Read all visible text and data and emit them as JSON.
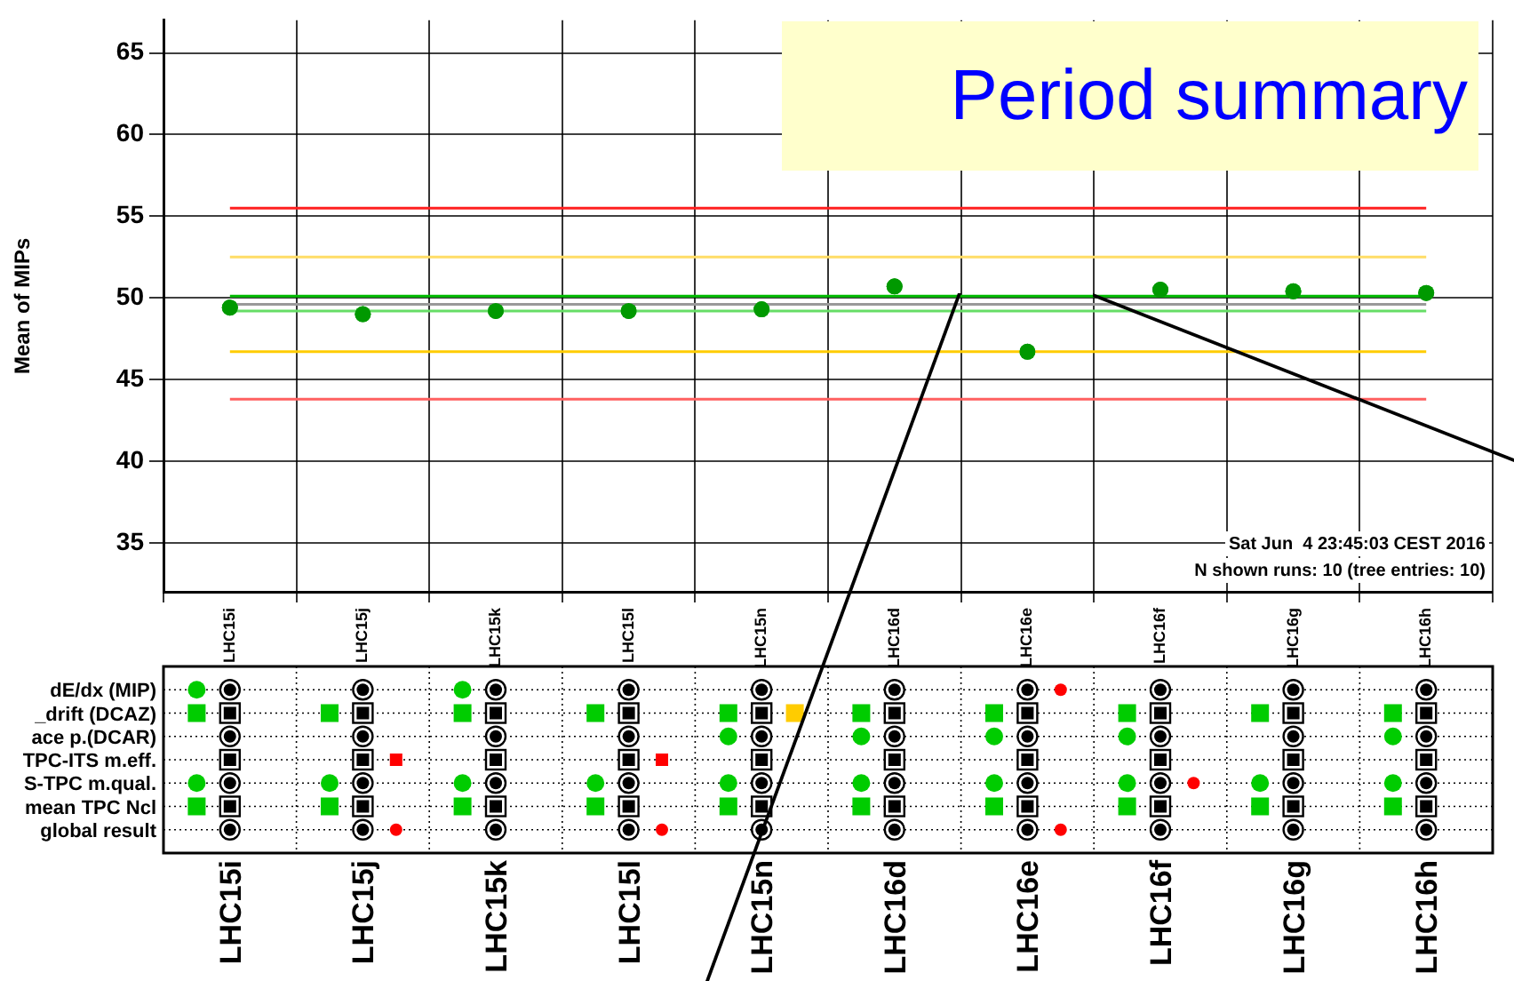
{
  "chart_data": [
    {
      "type": "scatter",
      "title": "Period summary",
      "ylabel": "Mean of MIPs",
      "categories": [
        "LHC15i",
        "LHC15j",
        "LHC15k",
        "LHC15l",
        "LHC15n",
        "LHC16d",
        "LHC16e",
        "LHC16f",
        "LHC16g",
        "LHC16h"
      ],
      "series": [
        {
          "color": "#009900",
          "values": [
            49.4,
            49.0,
            49.2,
            49.2,
            49.3,
            50.7,
            46.7,
            50.5,
            50.4,
            50.3
          ]
        }
      ],
      "ylim": [
        32,
        67
      ],
      "yticks": [
        35,
        40,
        45,
        50,
        55,
        60,
        65
      ],
      "grid": true,
      "legend": false,
      "marker": "circle",
      "ref_lines": [
        {
          "axis": "y",
          "value": 55.5,
          "color": "#ff2020"
        },
        {
          "axis": "y",
          "value": 52.5,
          "color": "#ffdd66"
        },
        {
          "axis": "y",
          "value": 50.1,
          "color": "#00bb00"
        },
        {
          "axis": "y",
          "value": 49.6,
          "color": "#999999"
        },
        {
          "axis": "y",
          "value": 49.2,
          "color": "#66dd66"
        },
        {
          "axis": "y",
          "value": 46.7,
          "color": "#ffcc00"
        },
        {
          "axis": "y",
          "value": 43.8,
          "color": "#ff6060"
        }
      ],
      "annotations": [
        "Sat Jun  4 23:45:03 CEST 2016",
        "N shown runs: 10 (tree entries: 10)"
      ]
    },
    {
      "type": "other",
      "categories": [
        "LHC15i",
        "LHC15j",
        "LHC15k",
        "LHC15l",
        "LHC15n",
        "LHC16d",
        "LHC16e",
        "LHC16f",
        "LHC16g",
        "LHC16h"
      ],
      "y_categories": [
        "dE/dx (MIP)",
        "_drift (DCAZ)",
        "ace p.(DCAR)",
        "TPC-ITS m.eff.",
        "S-TPC m.qual.",
        "mean TPC Ncl",
        "global result"
      ]
    }
  ]
}
